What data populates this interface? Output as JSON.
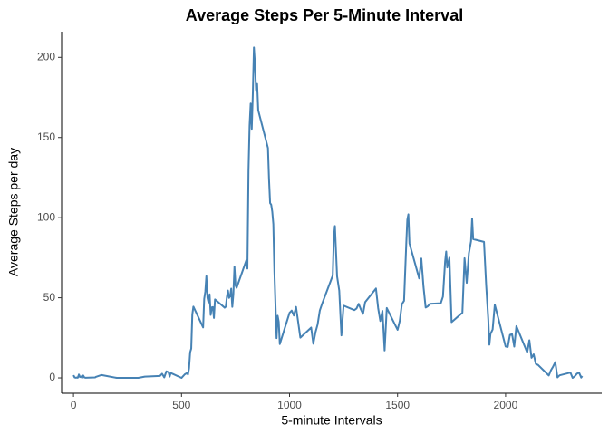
{
  "chart_data": {
    "type": "line",
    "title": "Average Steps Per 5-Minute Interval",
    "x_label": "5-minute Intervals",
    "y_label": "Average Steps per day",
    "color": "#4682b4",
    "x": [
      0,
      5,
      10,
      15,
      20,
      25,
      30,
      35,
      40,
      45,
      50,
      55,
      100,
      105,
      130,
      200,
      230,
      300,
      330,
      400,
      410,
      420,
      430,
      440,
      445,
      450,
      500,
      515,
      525,
      530,
      535,
      540,
      545,
      550,
      555,
      600,
      605,
      610,
      615,
      620,
      625,
      630,
      635,
      640,
      645,
      650,
      655,
      700,
      705,
      710,
      715,
      720,
      725,
      730,
      735,
      740,
      745,
      750,
      755,
      800,
      805,
      810,
      815,
      820,
      825,
      830,
      835,
      840,
      845,
      850,
      855,
      900,
      905,
      910,
      915,
      920,
      925,
      930,
      935,
      940,
      945,
      950,
      955,
      1000,
      1010,
      1020,
      1030,
      1040,
      1050,
      1100,
      1110,
      1120,
      1130,
      1140,
      1150,
      1200,
      1205,
      1210,
      1220,
      1230,
      1240,
      1250,
      1300,
      1310,
      1320,
      1330,
      1340,
      1350,
      1400,
      1410,
      1420,
      1430,
      1440,
      1450,
      1500,
      1510,
      1520,
      1530,
      1540,
      1545,
      1550,
      1555,
      1600,
      1610,
      1620,
      1630,
      1640,
      1650,
      1700,
      1710,
      1720,
      1725,
      1730,
      1740,
      1750,
      1800,
      1810,
      1820,
      1830,
      1840,
      1845,
      1850,
      1900,
      1910,
      1920,
      1925,
      1930,
      1940,
      1950,
      2000,
      2010,
      2020,
      2030,
      2040,
      2050,
      2100,
      2110,
      2120,
      2130,
      2140,
      2150,
      2200,
      2210,
      2220,
      2230,
      2240,
      2250,
      2300,
      2310,
      2320,
      2330,
      2340,
      2350,
      2355
    ],
    "values": [
      1.7,
      0.3,
      0.1,
      0.2,
      0.1,
      2.1,
      0.5,
      0.9,
      0,
      1.5,
      0.3,
      0.1,
      0.3,
      0.7,
      1.8,
      0,
      0,
      0,
      0.8,
      1.2,
      2.6,
      0.3,
      4.1,
      3.5,
      0.8,
      3.1,
      0,
      2.2,
      3.0,
      2.1,
      6.1,
      16,
      18.3,
      39.5,
      44.5,
      31.5,
      49.3,
      53.8,
      63.5,
      50.0,
      47.1,
      52.2,
      39.3,
      44.0,
      44.2,
      37.4,
      49.0,
      43.8,
      44.4,
      50.5,
      54.5,
      49.9,
      51.0,
      55.7,
      44.3,
      52.3,
      69.5,
      57.8,
      56.2,
      73.4,
      68.2,
      129.4,
      157.5,
      171.2,
      155.4,
      177.3,
      206.2,
      195.9,
      179.6,
      183.4,
      167.0,
      143.5,
      124.0,
      109.1,
      108.1,
      103.7,
      96.0,
      66.2,
      45.2,
      24.8,
      38.8,
      35.0,
      21.1,
      40.6,
      42.0,
      38.9,
      44.3,
      34.7,
      25.1,
      31.4,
      21.3,
      28.4,
      33.4,
      42.0,
      46.0,
      63.9,
      87.7,
      94.8,
      63.4,
      54.5,
      26.5,
      45.1,
      42.3,
      43.3,
      46.2,
      42.8,
      40.0,
      47.3,
      55.8,
      43.6,
      35.5,
      41.8,
      17.1,
      43.6,
      30.0,
      35.5,
      46.0,
      48.1,
      82.9,
      98.7,
      102.1,
      84.0,
      62.1,
      74.5,
      56.9,
      43.9,
      44.7,
      46.2,
      46.6,
      50.7,
      72.7,
      78.9,
      68.9,
      75.1,
      34.8,
      40.7,
      74.7,
      59.3,
      77.7,
      85.3,
      99.5,
      86.6,
      84.9,
      58.0,
      36.3,
      20.7,
      27.4,
      30.2,
      45.7,
      19.6,
      19.3,
      26.8,
      27.3,
      19.5,
      32.3,
      15.9,
      23.5,
      12.5,
      14.7,
      8.7,
      8.1,
      1.5,
      4.8,
      7.1,
      9.8,
      0.3,
      1.6,
      3.3,
      0,
      1.0,
      2.6,
      3.3,
      0.2,
      1.1
    ],
    "xlim": [
      -55,
      2445
    ],
    "xticks": [
      0,
      500,
      1000,
      1500,
      2000
    ],
    "ylim": [
      -9.6,
      216
    ],
    "yticks": [
      0,
      50,
      100,
      150,
      200
    ]
  }
}
